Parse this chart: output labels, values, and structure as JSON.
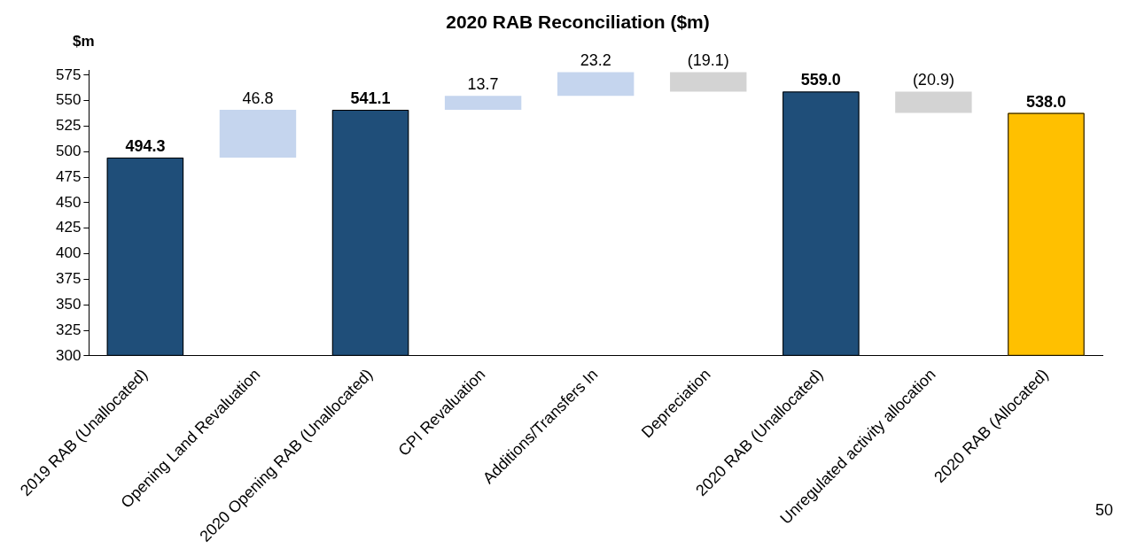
{
  "chart_data": {
    "type": "bar",
    "title": "2020 RAB Reconciliation ($m)",
    "ylabel": "$m",
    "categories": [
      "2019 RAB (Unallocated)",
      "Opening Land Revaluation",
      "2020 Opening RAB (Unallocated)",
      "CPI Revaluation",
      "Additions/Transfers In",
      "Depreciation",
      "2020 RAB (Unallocated)",
      "Unregulated activity allocation",
      "2020 RAB (Allocated)"
    ],
    "values": [
      494.3,
      46.8,
      541.1,
      13.7,
      23.2,
      -19.1,
      559.0,
      -20.9,
      538.0
    ],
    "base": [
      null,
      494.3,
      null,
      541.1,
      554.8,
      578.0,
      null,
      559.0,
      null
    ],
    "colors": [
      "#1f4e79",
      "#c5d5ee",
      "#1f4e79",
      "#c5d5ee",
      "#c5d5ee",
      "#d3d3d3",
      "#1f4e79",
      "#d3d3d3",
      "#ffc000"
    ],
    "value_labels": [
      "494.3",
      "46.8",
      "541.1",
      "13.7",
      "23.2",
      "(19.1)",
      "559.0",
      "(20.9)",
      "538.0"
    ],
    "ylim": [
      300,
      580
    ],
    "yticks": [
      300,
      325,
      350,
      375,
      400,
      425,
      450,
      475,
      500,
      525,
      550,
      575
    ],
    "grid": false,
    "legend": false,
    "annotations": [
      "50"
    ]
  }
}
